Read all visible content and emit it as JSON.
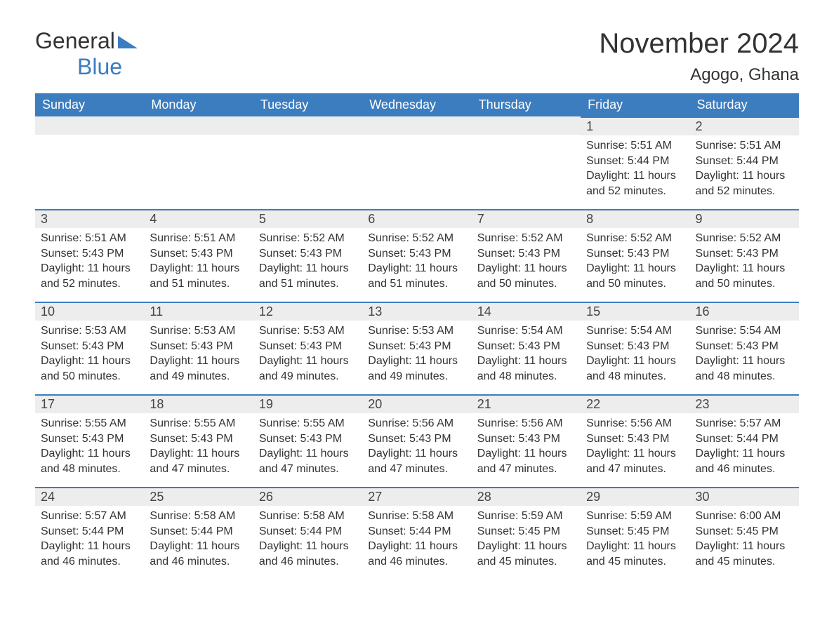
{
  "logo": {
    "part1": "General",
    "part2": "Blue"
  },
  "title": "November 2024",
  "location": "Agogo, Ghana",
  "colors": {
    "header_bg": "#3b7dbf",
    "header_text": "#ffffff",
    "daynum_bg": "#ededed",
    "border_top": "#3b7dbf",
    "text": "#333333",
    "page_bg": "#ffffff"
  },
  "day_headers": [
    "Sunday",
    "Monday",
    "Tuesday",
    "Wednesday",
    "Thursday",
    "Friday",
    "Saturday"
  ],
  "weeks": [
    [
      null,
      null,
      null,
      null,
      null,
      {
        "n": "1",
        "sr": "Sunrise: 5:51 AM",
        "ss": "Sunset: 5:44 PM",
        "dl": "Daylight: 11 hours and 52 minutes."
      },
      {
        "n": "2",
        "sr": "Sunrise: 5:51 AM",
        "ss": "Sunset: 5:44 PM",
        "dl": "Daylight: 11 hours and 52 minutes."
      }
    ],
    [
      {
        "n": "3",
        "sr": "Sunrise: 5:51 AM",
        "ss": "Sunset: 5:43 PM",
        "dl": "Daylight: 11 hours and 52 minutes."
      },
      {
        "n": "4",
        "sr": "Sunrise: 5:51 AM",
        "ss": "Sunset: 5:43 PM",
        "dl": "Daylight: 11 hours and 51 minutes."
      },
      {
        "n": "5",
        "sr": "Sunrise: 5:52 AM",
        "ss": "Sunset: 5:43 PM",
        "dl": "Daylight: 11 hours and 51 minutes."
      },
      {
        "n": "6",
        "sr": "Sunrise: 5:52 AM",
        "ss": "Sunset: 5:43 PM",
        "dl": "Daylight: 11 hours and 51 minutes."
      },
      {
        "n": "7",
        "sr": "Sunrise: 5:52 AM",
        "ss": "Sunset: 5:43 PM",
        "dl": "Daylight: 11 hours and 50 minutes."
      },
      {
        "n": "8",
        "sr": "Sunrise: 5:52 AM",
        "ss": "Sunset: 5:43 PM",
        "dl": "Daylight: 11 hours and 50 minutes."
      },
      {
        "n": "9",
        "sr": "Sunrise: 5:52 AM",
        "ss": "Sunset: 5:43 PM",
        "dl": "Daylight: 11 hours and 50 minutes."
      }
    ],
    [
      {
        "n": "10",
        "sr": "Sunrise: 5:53 AM",
        "ss": "Sunset: 5:43 PM",
        "dl": "Daylight: 11 hours and 50 minutes."
      },
      {
        "n": "11",
        "sr": "Sunrise: 5:53 AM",
        "ss": "Sunset: 5:43 PM",
        "dl": "Daylight: 11 hours and 49 minutes."
      },
      {
        "n": "12",
        "sr": "Sunrise: 5:53 AM",
        "ss": "Sunset: 5:43 PM",
        "dl": "Daylight: 11 hours and 49 minutes."
      },
      {
        "n": "13",
        "sr": "Sunrise: 5:53 AM",
        "ss": "Sunset: 5:43 PM",
        "dl": "Daylight: 11 hours and 49 minutes."
      },
      {
        "n": "14",
        "sr": "Sunrise: 5:54 AM",
        "ss": "Sunset: 5:43 PM",
        "dl": "Daylight: 11 hours and 48 minutes."
      },
      {
        "n": "15",
        "sr": "Sunrise: 5:54 AM",
        "ss": "Sunset: 5:43 PM",
        "dl": "Daylight: 11 hours and 48 minutes."
      },
      {
        "n": "16",
        "sr": "Sunrise: 5:54 AM",
        "ss": "Sunset: 5:43 PM",
        "dl": "Daylight: 11 hours and 48 minutes."
      }
    ],
    [
      {
        "n": "17",
        "sr": "Sunrise: 5:55 AM",
        "ss": "Sunset: 5:43 PM",
        "dl": "Daylight: 11 hours and 48 minutes."
      },
      {
        "n": "18",
        "sr": "Sunrise: 5:55 AM",
        "ss": "Sunset: 5:43 PM",
        "dl": "Daylight: 11 hours and 47 minutes."
      },
      {
        "n": "19",
        "sr": "Sunrise: 5:55 AM",
        "ss": "Sunset: 5:43 PM",
        "dl": "Daylight: 11 hours and 47 minutes."
      },
      {
        "n": "20",
        "sr": "Sunrise: 5:56 AM",
        "ss": "Sunset: 5:43 PM",
        "dl": "Daylight: 11 hours and 47 minutes."
      },
      {
        "n": "21",
        "sr": "Sunrise: 5:56 AM",
        "ss": "Sunset: 5:43 PM",
        "dl": "Daylight: 11 hours and 47 minutes."
      },
      {
        "n": "22",
        "sr": "Sunrise: 5:56 AM",
        "ss": "Sunset: 5:43 PM",
        "dl": "Daylight: 11 hours and 47 minutes."
      },
      {
        "n": "23",
        "sr": "Sunrise: 5:57 AM",
        "ss": "Sunset: 5:44 PM",
        "dl": "Daylight: 11 hours and 46 minutes."
      }
    ],
    [
      {
        "n": "24",
        "sr": "Sunrise: 5:57 AM",
        "ss": "Sunset: 5:44 PM",
        "dl": "Daylight: 11 hours and 46 minutes."
      },
      {
        "n": "25",
        "sr": "Sunrise: 5:58 AM",
        "ss": "Sunset: 5:44 PM",
        "dl": "Daylight: 11 hours and 46 minutes."
      },
      {
        "n": "26",
        "sr": "Sunrise: 5:58 AM",
        "ss": "Sunset: 5:44 PM",
        "dl": "Daylight: 11 hours and 46 minutes."
      },
      {
        "n": "27",
        "sr": "Sunrise: 5:58 AM",
        "ss": "Sunset: 5:44 PM",
        "dl": "Daylight: 11 hours and 46 minutes."
      },
      {
        "n": "28",
        "sr": "Sunrise: 5:59 AM",
        "ss": "Sunset: 5:45 PM",
        "dl": "Daylight: 11 hours and 45 minutes."
      },
      {
        "n": "29",
        "sr": "Sunrise: 5:59 AM",
        "ss": "Sunset: 5:45 PM",
        "dl": "Daylight: 11 hours and 45 minutes."
      },
      {
        "n": "30",
        "sr": "Sunrise: 6:00 AM",
        "ss": "Sunset: 5:45 PM",
        "dl": "Daylight: 11 hours and 45 minutes."
      }
    ]
  ]
}
